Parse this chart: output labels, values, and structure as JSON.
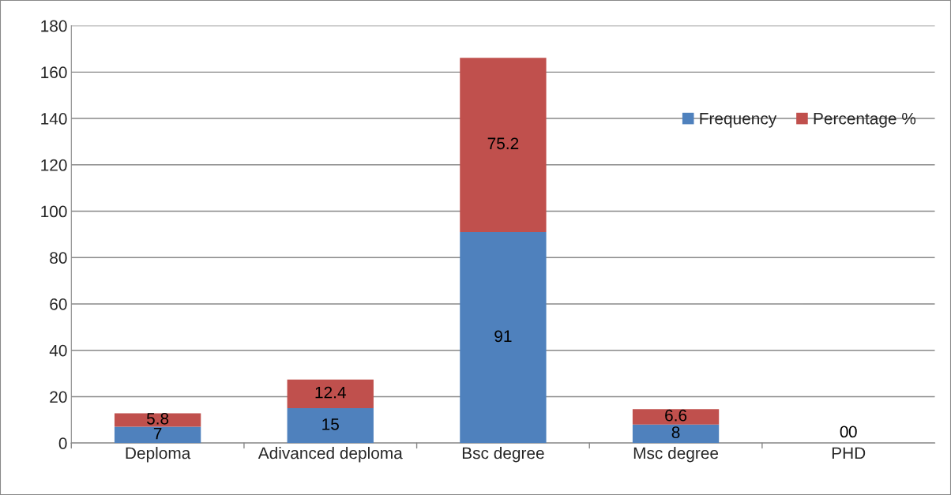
{
  "chart_data": {
    "type": "bar",
    "stacked": true,
    "categories": [
      "Deploma",
      "Adivanced deploma",
      "Bsc degree",
      "Msc degree",
      "PHD"
    ],
    "series": [
      {
        "name": "Frequency",
        "color": "#4f81bd",
        "values": [
          7,
          15,
          91,
          8,
          0
        ]
      },
      {
        "name": "Percentage %",
        "color": "#c0504d",
        "values": [
          5.8,
          12.4,
          75.2,
          6.6,
          0
        ]
      }
    ],
    "ylim": [
      0,
      180
    ],
    "yticks": [
      0,
      20,
      40,
      60,
      80,
      100,
      120,
      140,
      160,
      180
    ],
    "grid": "y",
    "legend": "top right",
    "data_labels": true
  }
}
